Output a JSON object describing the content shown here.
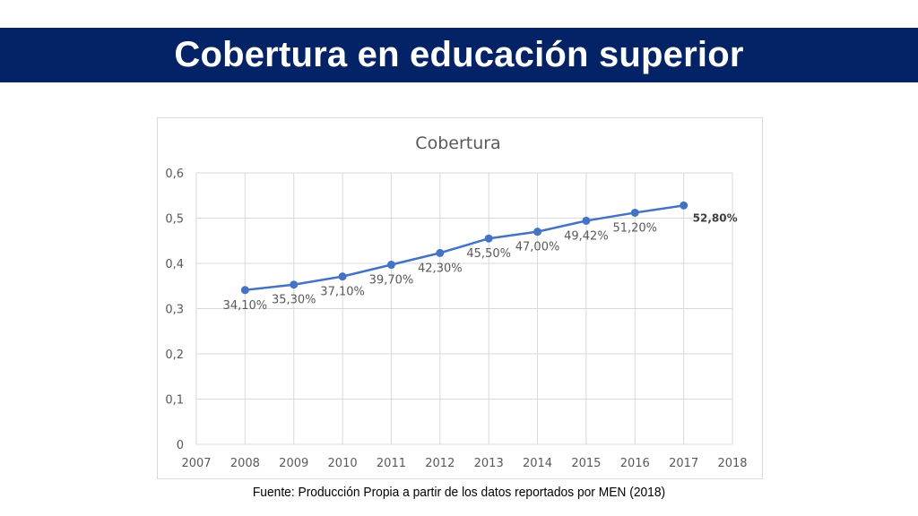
{
  "header": {
    "title": "Cobertura en educación superior"
  },
  "footer": {
    "source": "Fuente: Producción Propia a partir de los datos reportados por MEN (2018)"
  },
  "chart_data": {
    "type": "line",
    "title": "Cobertura",
    "xlabel": "",
    "ylabel": "",
    "xlim": [
      2007,
      2018
    ],
    "ylim": [
      0,
      0.6
    ],
    "x_ticks": [
      2007,
      2008,
      2009,
      2010,
      2011,
      2012,
      2013,
      2014,
      2015,
      2016,
      2017,
      2018
    ],
    "x_tick_labels": [
      "2007",
      "2008",
      "2009",
      "2010",
      "2011",
      "2012",
      "2013",
      "2014",
      "2015",
      "2016",
      "2017",
      "2018"
    ],
    "y_ticks": [
      0,
      0.1,
      0.2,
      0.3,
      0.4,
      0.5,
      0.6
    ],
    "y_tick_labels": [
      "0",
      "0,1",
      "0,2",
      "0,3",
      "0,4",
      "0,5",
      "0,6"
    ],
    "grid": true,
    "legend": "none",
    "series": [
      {
        "color": "#4472c4",
        "x": [
          2008,
          2009,
          2010,
          2011,
          2012,
          2013,
          2014,
          2015,
          2016,
          2017
        ],
        "y": [
          0.341,
          0.353,
          0.371,
          0.397,
          0.423,
          0.455,
          0.47,
          0.4942,
          0.512,
          0.528
        ],
        "labels": [
          "34,10%",
          "35,30%",
          "37,10%",
          "39,70%",
          "42,30%",
          "45,50%",
          "47,00%",
          "49,42%",
          "51,20%",
          "52,80%"
        ],
        "emphasized_label": "52,80%"
      }
    ]
  }
}
